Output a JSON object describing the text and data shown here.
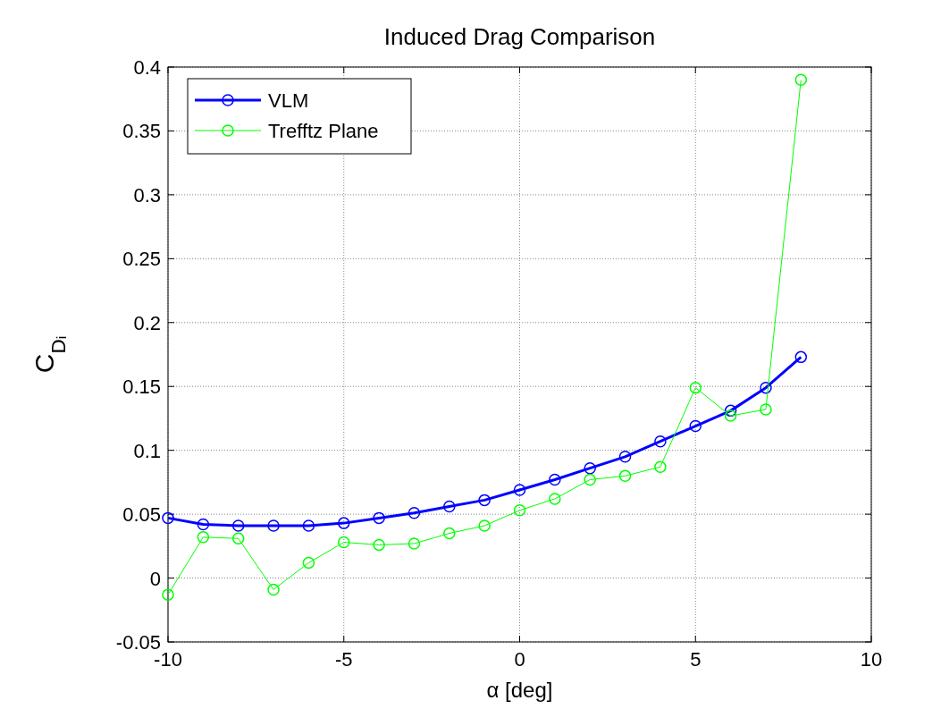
{
  "chart_data": {
    "type": "line",
    "title": "Induced Drag Comparison",
    "xlabel": "α [deg]",
    "ylabel": "C$_{Dᵢ}$",
    "x": [
      -10,
      -9,
      -8,
      -7,
      -6,
      -5,
      -4,
      -3,
      -2,
      -1,
      0,
      1,
      2,
      3,
      4,
      5,
      6,
      7,
      8
    ],
    "series": [
      {
        "name": "VLM",
        "color": "#0000ff",
        "values": [
          0.047,
          0.042,
          0.041,
          0.041,
          0.041,
          0.043,
          0.047,
          0.051,
          0.056,
          0.061,
          0.069,
          0.077,
          0.086,
          0.095,
          0.107,
          0.119,
          0.131,
          0.149,
          0.173
        ]
      },
      {
        "name": "Trefftz Plane",
        "color": "#00ff00",
        "values": [
          -0.013,
          0.032,
          0.031,
          -0.009,
          0.012,
          0.028,
          0.026,
          0.027,
          0.035,
          0.041,
          0.053,
          0.062,
          0.077,
          0.08,
          0.087,
          0.149,
          0.127,
          0.132,
          0.39
        ]
      }
    ],
    "xlim": [
      -10,
      10
    ],
    "xticks": [
      -10,
      -5,
      0,
      5,
      10
    ],
    "ylim": [
      -0.05,
      0.4
    ],
    "yticks": [
      -0.05,
      0,
      0.05,
      0.1,
      0.15,
      0.2,
      0.25,
      0.3,
      0.35,
      0.4
    ],
    "grid": true,
    "legend": "top left",
    "marker": "circle",
    "line_style": "solid"
  }
}
